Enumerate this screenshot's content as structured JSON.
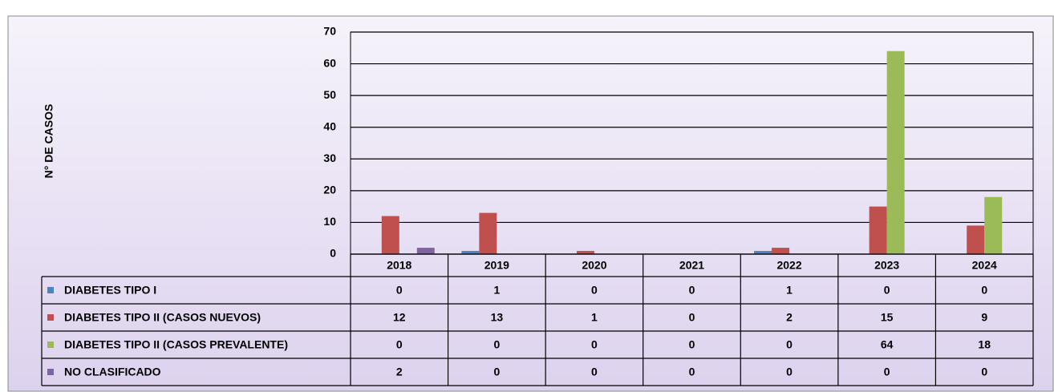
{
  "chart_data": {
    "type": "bar",
    "y_label": "N° DE CASOS",
    "categories": [
      "2018",
      "2019",
      "2020",
      "2021",
      "2022",
      "2023",
      "2024"
    ],
    "series": [
      {
        "name": "DIABETES TIPO I",
        "color": "#4f81bd",
        "values": [
          0,
          1,
          0,
          0,
          1,
          0,
          0
        ]
      },
      {
        "name": "DIABETES TIPO II (CASOS NUEVOS)",
        "color": "#c0504d",
        "values": [
          12,
          13,
          1,
          0,
          2,
          15,
          9
        ]
      },
      {
        "name": "DIABETES TIPO II (CASOS PREVALENTE)",
        "color": "#9bbb59",
        "values": [
          0,
          0,
          0,
          0,
          0,
          64,
          18
        ]
      },
      {
        "name": "NO CLASIFICADO",
        "color": "#8064a2",
        "values": [
          2,
          0,
          0,
          0,
          0,
          0,
          0
        ]
      }
    ],
    "ylim": [
      0,
      70
    ],
    "yticks": [
      0,
      10,
      20,
      30,
      40,
      50,
      60,
      70
    ],
    "grid": true
  }
}
